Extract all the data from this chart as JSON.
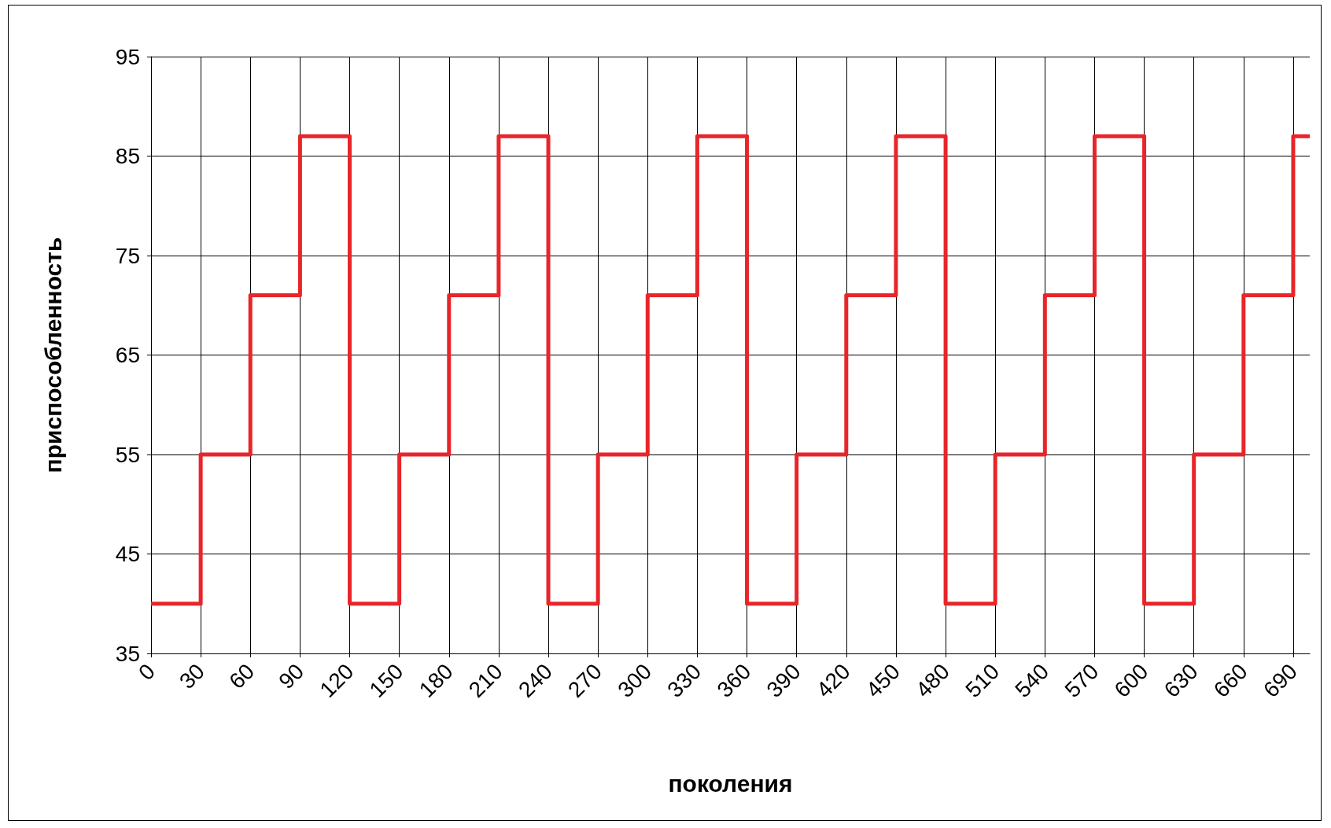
{
  "chart_data": {
    "type": "step",
    "xlabel": "поколения",
    "ylabel": "приспособленность",
    "x": [
      0,
      30,
      60,
      90,
      120,
      150,
      180,
      210,
      240,
      270,
      300,
      330,
      360,
      390,
      420,
      450,
      480,
      510,
      540,
      570,
      600,
      630,
      660,
      690,
      700
    ],
    "series": [
      {
        "color": "#e8252a",
        "values": [
          40,
          55,
          71,
          87,
          40,
          55,
          71,
          87,
          40,
          55,
          71,
          87,
          40,
          55,
          71,
          87,
          40,
          55,
          71,
          87,
          40,
          55,
          71,
          87,
          87
        ]
      }
    ],
    "xlim": [
      0,
      700
    ],
    "xticks": [
      0,
      30,
      60,
      90,
      120,
      150,
      180,
      210,
      240,
      270,
      300,
      330,
      360,
      390,
      420,
      450,
      480,
      510,
      540,
      570,
      600,
      630,
      660,
      690
    ],
    "ylim": [
      35,
      95
    ],
    "yticks": [
      35,
      45,
      55,
      65,
      75,
      85,
      95
    ],
    "grid": true,
    "marker": "none",
    "line_style": "solid"
  }
}
